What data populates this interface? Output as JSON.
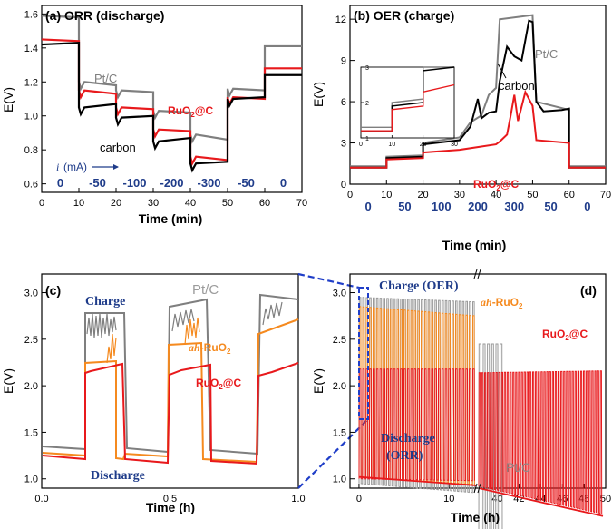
{
  "chart_data": [
    {
      "panel": "a",
      "type": "line",
      "title": "(a) ORR (discharge)",
      "xlabel": "Time (min)",
      "ylabel": "E(V)",
      "xlim": [
        0,
        70
      ],
      "ylim": [
        0.55,
        1.65
      ],
      "x_ticks": [
        0,
        10,
        20,
        30,
        40,
        50,
        60,
        70
      ],
      "y_ticks": [
        0.6,
        0.8,
        1.0,
        1.2,
        1.4,
        1.6
      ],
      "current_label": "i (mA)",
      "current_segments": [
        {
          "x": 5,
          "label": "0"
        },
        {
          "x": 15,
          "label": "-50"
        },
        {
          "x": 25,
          "label": "-100"
        },
        {
          "x": 35,
          "label": "-200"
        },
        {
          "x": 45,
          "label": "-300"
        },
        {
          "x": 55,
          "label": "-50"
        },
        {
          "x": 65,
          "label": "0"
        }
      ],
      "series": [
        {
          "name": "Pt/C",
          "color": "#7f7f7f",
          "levels": [
            [
              0,
              10,
              1.59,
              1.58
            ],
            [
              10,
              20,
              1.2,
              1.18
            ],
            [
              20,
              30,
              1.15,
              1.14
            ],
            [
              30,
              40,
              1.03,
              1.02
            ],
            [
              40,
              50,
              0.89,
              0.86
            ],
            [
              50,
              60,
              1.16,
              1.15
            ],
            [
              60,
              70,
              1.41,
              1.41
            ]
          ]
        },
        {
          "name": "RuO2@C",
          "color": "#e8191c",
          "levels": [
            [
              0,
              10,
              1.45,
              1.44
            ],
            [
              10,
              20,
              1.15,
              1.13
            ],
            [
              20,
              30,
              1.05,
              1.04
            ],
            [
              30,
              40,
              0.92,
              0.91
            ],
            [
              40,
              50,
              0.76,
              0.74
            ],
            [
              50,
              60,
              1.11,
              1.1
            ],
            [
              60,
              70,
              1.28,
              1.28
            ]
          ]
        },
        {
          "name": "carbon",
          "color": "#000000",
          "levels": [
            [
              0,
              10,
              1.42,
              1.43
            ],
            [
              10,
              20,
              1.05,
              1.07
            ],
            [
              20,
              30,
              0.99,
              1.0
            ],
            [
              30,
              40,
              0.85,
              0.87
            ],
            [
              40,
              50,
              0.72,
              0.73
            ],
            [
              50,
              60,
              1.1,
              1.11
            ],
            [
              60,
              70,
              1.24,
              1.24
            ]
          ]
        }
      ],
      "labels": {
        "ptc": "Pt/C",
        "ruo2_main": "RuO",
        "ruo2_sub": "2",
        "ruo2_suffix": "@C",
        "carbon": "carbon"
      }
    },
    {
      "panel": "b",
      "type": "line",
      "title": "(b) OER (charge)",
      "xlabel": "Time (min)",
      "ylabel": "E(V)",
      "xlim": [
        0,
        70
      ],
      "ylim": [
        0,
        13
      ],
      "x_ticks": [
        0,
        10,
        20,
        30,
        40,
        50,
        60,
        70
      ],
      "y_ticks": [
        0,
        3,
        6,
        9,
        12
      ],
      "current_segments": [
        {
          "x": 5,
          "label": "0"
        },
        {
          "x": 15,
          "label": "50"
        },
        {
          "x": 25,
          "label": "100"
        },
        {
          "x": 35,
          "label": "200"
        },
        {
          "x": 45,
          "label": "300"
        },
        {
          "x": 55,
          "label": "50"
        },
        {
          "x": 65,
          "label": "0"
        }
      ],
      "series": [
        {
          "name": "Pt/C",
          "color": "#7f7f7f",
          "points": [
            [
              0,
              1.3
            ],
            [
              10,
              1.3
            ],
            [
              10,
              2.0
            ],
            [
              20,
              2.1
            ],
            [
              20,
              3.0
            ],
            [
              30,
              3.4
            ],
            [
              33,
              4.5
            ],
            [
              36,
              5.0
            ],
            [
              38,
              6.5
            ],
            [
              40,
              7.0
            ],
            [
              41,
              12.0
            ],
            [
              50,
              12.3
            ],
            [
              51,
              6.0
            ],
            [
              60,
              5.4
            ],
            [
              60,
              1.3
            ],
            [
              70,
              1.3
            ]
          ]
        },
        {
          "name": "carbon",
          "color": "#000000",
          "points": [
            [
              0,
              1.2
            ],
            [
              10,
              1.2
            ],
            [
              10,
              1.9
            ],
            [
              20,
              2.0
            ],
            [
              20,
              2.9
            ],
            [
              30,
              3.2
            ],
            [
              33,
              4.2
            ],
            [
              35,
              6.2
            ],
            [
              36,
              4.8
            ],
            [
              38,
              5.2
            ],
            [
              40,
              5.3
            ],
            [
              41,
              7.5
            ],
            [
              43,
              10.0
            ],
            [
              45,
              9.3
            ],
            [
              47,
              9.0
            ],
            [
              49,
              11.9
            ],
            [
              50,
              11.8
            ],
            [
              51,
              6.0
            ],
            [
              53,
              5.3
            ],
            [
              58,
              5.4
            ],
            [
              60,
              5.5
            ],
            [
              60,
              1.2
            ],
            [
              70,
              1.2
            ]
          ]
        },
        {
          "name": "RuO2@C",
          "color": "#e8191c",
          "points": [
            [
              0,
              1.2
            ],
            [
              10,
              1.2
            ],
            [
              10,
              1.8
            ],
            [
              20,
              1.9
            ],
            [
              20,
              2.3
            ],
            [
              30,
              2.5
            ],
            [
              40,
              2.9
            ],
            [
              41,
              3.1
            ],
            [
              43,
              3.6
            ],
            [
              44,
              5.0
            ],
            [
              45,
              6.5
            ],
            [
              46,
              4.6
            ],
            [
              48,
              6.7
            ],
            [
              50,
              5.7
            ],
            [
              51,
              3.2
            ],
            [
              60,
              3.0
            ],
            [
              60,
              1.2
            ],
            [
              70,
              1.2
            ]
          ]
        }
      ],
      "inset": {
        "xlim": [
          0,
          30
        ],
        "ylim": [
          1,
          3
        ],
        "x_ticks": [
          0,
          10,
          20,
          30
        ],
        "y_ticks": [
          1,
          2,
          3
        ]
      },
      "labels": {
        "ptc": "Pt/C",
        "ruo2_main": "RuO",
        "ruo2_sub": "2",
        "ruo2_suffix": "@C",
        "carbon": "carbon"
      }
    },
    {
      "panel": "c",
      "type": "line",
      "xlabel": "Time (h)",
      "ylabel": "E(V)",
      "xlim": [
        0,
        1
      ],
      "ylim": [
        0.9,
        3.2
      ],
      "x_ticks": [
        0.0,
        0.5,
        1.0
      ],
      "y_ticks": [
        1.0,
        1.5,
        2.0,
        2.5,
        3.0
      ],
      "x_tick_labels": [
        "0.0",
        "0.5",
        "1.0"
      ],
      "y_tick_labels": [
        "1.0",
        "1.5",
        "2.0",
        "2.5",
        "3.0"
      ],
      "labels": {
        "charge": "Charge",
        "discharge": "Discharge",
        "ptc": "Pt/C",
        "ah_italic": "ah",
        "ah_rest": "-RuO",
        "ah_sub": "2",
        "ruo2_main": "RuO",
        "ruo2_sub": "2",
        "ruo2_suffix": "@C"
      }
    },
    {
      "panel": "d",
      "type": "line",
      "xlabel": "Time (h)",
      "ylabel": "E(V)",
      "ylim": [
        0.9,
        3.2
      ],
      "y_ticks": [
        1.0,
        1.5,
        2.0,
        2.5,
        3.0
      ],
      "y_tick_labels": [
        "1.0",
        "1.5",
        "2.0",
        "2.5",
        "3.0"
      ],
      "x_ticks_left": [
        0,
        10
      ],
      "x_ticks_right": [
        40,
        42,
        44,
        46,
        48,
        50
      ],
      "labels": {
        "charge": "Charge (OER)",
        "discharge_1": "Discharge",
        "discharge_2": "(ORR)",
        "ah_italic": "ah",
        "ah_rest": "-RuO",
        "ah_sub": "2",
        "ruo2_main": "RuO",
        "ruo2_sub": "2",
        "ruo2_suffix": "@C",
        "ptc": "Pt/C"
      }
    }
  ]
}
